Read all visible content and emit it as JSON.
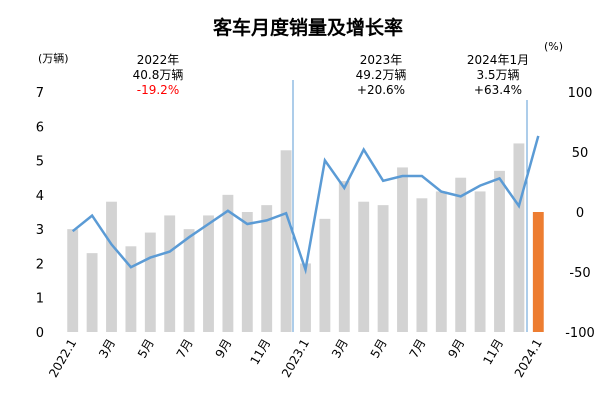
{
  "chart_data": {
    "type": "bar-line",
    "title": "客车月度销量及增长率",
    "y_label": "(万辆)",
    "y2_label": "(%)",
    "categories": [
      "2022.1",
      null,
      "3月",
      null,
      "5月",
      null,
      "7月",
      null,
      "9月",
      null,
      "11月",
      null,
      "2023.1",
      null,
      "3月",
      null,
      "5月",
      null,
      "7月",
      null,
      "9月",
      null,
      "11月",
      null,
      "2024.1"
    ],
    "ylim": [
      0,
      7
    ],
    "yticks": [
      0,
      1,
      2,
      3,
      4,
      5,
      6,
      7
    ],
    "y2lim": [
      -100,
      100
    ],
    "y2ticks": [
      100,
      50,
      0,
      -50,
      -100
    ],
    "series": [
      {
        "type": "bar",
        "color": "#d3d3d3",
        "colors": [
          "#d3d3d3",
          "#d3d3d3",
          "#d3d3d3",
          "#d3d3d3",
          "#d3d3d3",
          "#d3d3d3",
          "#d3d3d3",
          "#d3d3d3",
          "#d3d3d3",
          "#d3d3d3",
          "#d3d3d3",
          "#d3d3d3",
          "#d3d3d3",
          "#d3d3d3",
          "#d3d3d3",
          "#d3d3d3",
          "#d3d3d3",
          "#d3d3d3",
          "#d3d3d3",
          "#d3d3d3",
          "#d3d3d3",
          "#d3d3d3",
          "#d3d3d3",
          "#d3d3d3",
          "#ed7d31"
        ],
        "values": [
          3.0,
          2.3,
          3.8,
          2.5,
          2.9,
          3.4,
          3.0,
          3.4,
          4.0,
          3.5,
          3.7,
          5.3,
          2.0,
          3.3,
          4.4,
          3.8,
          3.7,
          4.8,
          3.9,
          4.1,
          4.5,
          4.1,
          4.7,
          5.5,
          3.5
        ]
      },
      {
        "type": "line",
        "axis": "y2",
        "color": "#5b9bd5",
        "values": [
          -16,
          -3,
          -27,
          -46,
          -38,
          -33,
          -21,
          -10,
          1,
          -10,
          -7,
          -1,
          -48,
          43,
          20,
          52,
          26,
          30,
          30,
          17,
          13,
          22,
          28,
          5,
          63.4
        ]
      }
    ],
    "annotations": [
      {
        "lines": [
          "2022年",
          "40.8万辆",
          "-19.2%"
        ],
        "colors": [
          "#000000",
          "#000000",
          "#ff0000"
        ]
      },
      {
        "lines": [
          "2023年",
          "49.2万辆",
          "+20.6%"
        ],
        "colors": [
          "#000000",
          "#000000",
          "#000000"
        ]
      },
      {
        "lines": [
          "2024年1月",
          "3.5万辆",
          "+63.4%"
        ],
        "colors": [
          "#000000",
          "#000000",
          "#000000"
        ]
      }
    ]
  }
}
